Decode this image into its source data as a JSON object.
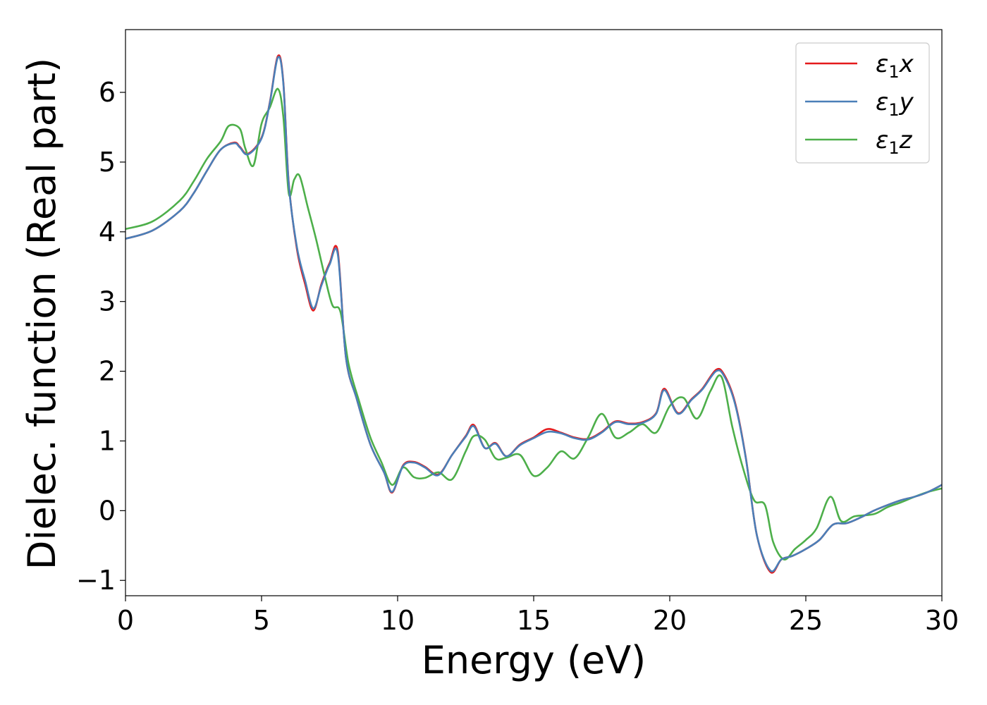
{
  "chart_data": {
    "type": "line",
    "xlabel": "Energy (eV)",
    "ylabel": "Dielec. function (Real part)",
    "xlim": [
      0,
      30
    ],
    "ylim": [
      -1.22,
      6.9
    ],
    "xticks": [
      0,
      5,
      10,
      15,
      20,
      25,
      30
    ],
    "yticks": [
      -1,
      0,
      1,
      2,
      3,
      4,
      5,
      6
    ],
    "grid": false,
    "legend_position": "top-right",
    "series": [
      {
        "name": "ε1x",
        "legend_base": "ε",
        "legend_sub": "1",
        "legend_suffix": "x",
        "color": "#e41a1c",
        "x": [
          0,
          1,
          2,
          2.5,
          3,
          3.5,
          4,
          4.2,
          4.5,
          5,
          5.3,
          5.6,
          5.8,
          6,
          6.3,
          6.6,
          6.9,
          7.2,
          7.5,
          7.8,
          8.1,
          8.5,
          9,
          9.5,
          9.8,
          10.2,
          10.6,
          11,
          11.5,
          12,
          12.5,
          12.8,
          13.2,
          13.6,
          14,
          14.5,
          15,
          15.5,
          16,
          16.5,
          17,
          17.5,
          18,
          18.5,
          19,
          19.5,
          19.8,
          20.3,
          20.8,
          21.2,
          21.7,
          22,
          22.4,
          22.8,
          23.2,
          23.7,
          24.1,
          24.5,
          25,
          25.5,
          26,
          26.5,
          27,
          27.5,
          28,
          28.5,
          29,
          29.5,
          30
        ],
        "y": [
          3.9,
          4.02,
          4.3,
          4.55,
          4.88,
          5.18,
          5.28,
          5.22,
          5.12,
          5.35,
          5.85,
          6.52,
          6.15,
          4.7,
          3.75,
          3.25,
          2.87,
          3.25,
          3.55,
          3.72,
          2.2,
          1.6,
          0.95,
          0.55,
          0.26,
          0.65,
          0.7,
          0.63,
          0.52,
          0.8,
          1.07,
          1.23,
          0.9,
          0.97,
          0.78,
          0.95,
          1.05,
          1.17,
          1.12,
          1.05,
          1.03,
          1.13,
          1.28,
          1.25,
          1.27,
          1.4,
          1.75,
          1.4,
          1.6,
          1.75,
          2.02,
          1.95,
          1.55,
          0.75,
          -0.35,
          -0.88,
          -0.7,
          -0.65,
          -0.55,
          -0.42,
          -0.2,
          -0.18,
          -0.1,
          0.0,
          0.08,
          0.15,
          0.2,
          0.27,
          0.37
        ]
      },
      {
        "name": "ε1y",
        "legend_base": "ε",
        "legend_sub": "1",
        "legend_suffix": "y",
        "color": "#4a7fb8",
        "x": [
          0,
          1,
          2,
          2.5,
          3,
          3.5,
          4,
          4.2,
          4.5,
          5,
          5.3,
          5.6,
          5.8,
          6,
          6.3,
          6.6,
          6.9,
          7.2,
          7.5,
          7.8,
          8.1,
          8.5,
          9,
          9.5,
          9.8,
          10.2,
          10.6,
          11,
          11.5,
          12,
          12.5,
          12.8,
          13.2,
          13.6,
          14,
          14.5,
          15,
          15.5,
          16,
          16.5,
          17,
          17.5,
          18,
          18.5,
          19,
          19.5,
          19.8,
          20.3,
          20.8,
          21.2,
          21.7,
          22,
          22.4,
          22.8,
          23.2,
          23.7,
          24.1,
          24.5,
          25,
          25.5,
          26,
          26.5,
          27,
          27.5,
          28,
          28.5,
          29,
          29.5,
          30
        ],
        "y": [
          3.9,
          4.02,
          4.3,
          4.55,
          4.88,
          5.18,
          5.27,
          5.21,
          5.11,
          5.34,
          5.84,
          6.5,
          6.13,
          4.68,
          3.78,
          3.3,
          2.9,
          3.23,
          3.53,
          3.68,
          2.2,
          1.6,
          0.95,
          0.55,
          0.27,
          0.64,
          0.69,
          0.62,
          0.51,
          0.8,
          1.06,
          1.21,
          0.9,
          0.96,
          0.78,
          0.94,
          1.04,
          1.13,
          1.11,
          1.04,
          1.02,
          1.12,
          1.27,
          1.24,
          1.26,
          1.39,
          1.73,
          1.39,
          1.59,
          1.74,
          2.0,
          1.93,
          1.53,
          0.74,
          -0.35,
          -0.86,
          -0.7,
          -0.65,
          -0.55,
          -0.42,
          -0.2,
          -0.18,
          -0.1,
          0.0,
          0.08,
          0.15,
          0.2,
          0.27,
          0.37
        ]
      },
      {
        "name": "ε1z",
        "legend_base": "ε",
        "legend_sub": "1",
        "legend_suffix": "z",
        "color": "#4daf4a",
        "x": [
          0,
          1,
          2,
          2.5,
          3,
          3.5,
          3.8,
          4.2,
          4.4,
          4.7,
          5,
          5.3,
          5.6,
          5.8,
          6,
          6.2,
          6.4,
          6.7,
          7,
          7.3,
          7.6,
          7.9,
          8.2,
          8.6,
          9,
          9.4,
          9.8,
          10.2,
          10.6,
          11,
          11.5,
          12,
          12.5,
          12.8,
          13.2,
          13.6,
          14,
          14.5,
          15,
          15.5,
          16,
          16.5,
          17,
          17.5,
          18,
          18.5,
          19,
          19.5,
          20,
          20.5,
          21,
          21.5,
          21.9,
          22.3,
          22.7,
          23.1,
          23.5,
          23.8,
          24.2,
          24.6,
          25,
          25.4,
          25.9,
          26.3,
          26.8,
          27.5,
          28,
          28.5,
          29,
          29.5,
          30
        ],
        "y": [
          4.04,
          4.15,
          4.45,
          4.72,
          5.05,
          5.3,
          5.52,
          5.48,
          5.2,
          4.95,
          5.55,
          5.78,
          6.05,
          5.65,
          4.55,
          4.75,
          4.8,
          4.35,
          3.9,
          3.4,
          2.95,
          2.85,
          2.1,
          1.55,
          1.05,
          0.7,
          0.37,
          0.62,
          0.48,
          0.47,
          0.55,
          0.45,
          0.85,
          1.07,
          1.02,
          0.75,
          0.76,
          0.8,
          0.5,
          0.62,
          0.85,
          0.75,
          1.05,
          1.39,
          1.05,
          1.12,
          1.24,
          1.12,
          1.5,
          1.62,
          1.32,
          1.72,
          1.92,
          1.2,
          0.6,
          0.15,
          0.08,
          -0.45,
          -0.7,
          -0.55,
          -0.42,
          -0.25,
          0.2,
          -0.15,
          -0.08,
          -0.05,
          0.05,
          0.12,
          0.2,
          0.27,
          0.32
        ]
      }
    ]
  }
}
